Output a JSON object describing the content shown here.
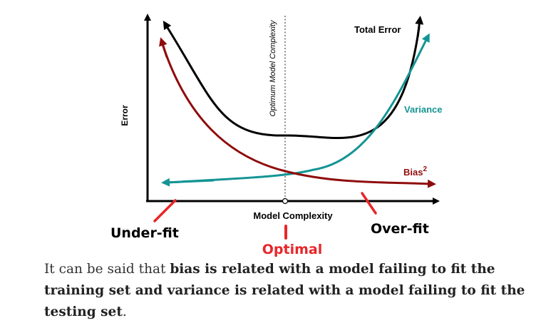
{
  "diagram": {
    "y_axis_label": "Error",
    "x_axis_label": "Model Complexity",
    "optimum_label": "Optimum Model Complexity",
    "curves": {
      "total_error": {
        "label": "Total Error",
        "color": "#000000"
      },
      "variance": {
        "label": "Variance",
        "color": "#149494"
      },
      "bias": {
        "label": "Bias",
        "superscript": "2",
        "color": "#8f0c0c"
      }
    },
    "annotations": {
      "underfit": "Under-fit",
      "overfit": "Over-fit",
      "optimal": "Optimal",
      "annotation_color": "#e8262a"
    }
  },
  "caption": {
    "text_1": "It can be said that ",
    "bold_1": "bias is related with a model failing to fit the training set and variance is related with a model failing to fit the testing set",
    "text_2": "."
  }
}
